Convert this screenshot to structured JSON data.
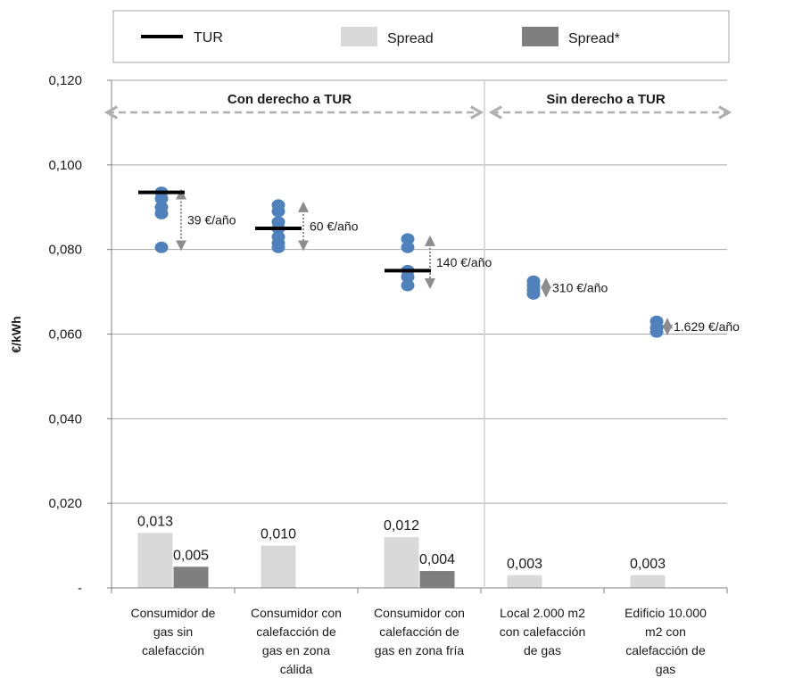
{
  "chart_data": {
    "type": "bar",
    "ylabel": "€/kWh",
    "ylim": [
      0,
      0.12
    ],
    "y_ticks": [
      "0,120",
      "0,100",
      "0,080",
      "0,060",
      "0,040",
      "0,020",
      "-"
    ],
    "grid": true,
    "legend_position": "top",
    "legend": [
      {
        "label": "TUR",
        "marker": "line",
        "color": "#000000"
      },
      {
        "label": "Spread",
        "marker": "box",
        "color": "#d9d9d9"
      },
      {
        "label": "Spread*",
        "marker": "box",
        "color": "#7f7f7f"
      }
    ],
    "categories": [
      [
        "Consumidor de",
        "gas sin",
        "calefacción"
      ],
      [
        "Consumidor con",
        "calefacción de",
        "gas en zona",
        "cálida"
      ],
      [
        "Consumidor con",
        "calefacción de",
        "gas en zona fría"
      ],
      [
        "Local 2.000 m2",
        "con calefacción",
        "de gas"
      ],
      [
        "Edificio 10.000",
        "m2 con",
        "calefacción de",
        "gas"
      ]
    ],
    "regions": [
      {
        "label": "Con derecho a TUR",
        "from": 0,
        "to": 3
      },
      {
        "label": "Sin derecho a TUR",
        "from": 3,
        "to": 5
      }
    ],
    "series": [
      {
        "name": "Spread",
        "color": "#d9d9d9",
        "values": [
          0.013,
          0.01,
          0.012,
          0.003,
          0.003
        ],
        "labels": [
          "0,013",
          "0,010",
          "0,012",
          "0,003",
          "0,003"
        ]
      },
      {
        "name": "Spread*",
        "color": "#7f7f7f",
        "values": [
          0.005,
          null,
          0.004,
          null,
          null
        ],
        "labels": [
          "0,005",
          "",
          "0,004",
          "",
          ""
        ]
      }
    ],
    "tur": [
      0.0935,
      0.085,
      0.075,
      null,
      null
    ],
    "price_points": [
      [
        0.0935,
        0.092,
        0.09,
        0.0885,
        0.0805
      ],
      [
        0.0905,
        0.089,
        0.0865,
        0.085,
        0.083,
        0.0815,
        0.0805
      ],
      [
        0.0825,
        0.0805,
        0.075,
        0.0735,
        0.0715
      ],
      [
        0.0725,
        0.0715,
        0.0705,
        0.0695
      ],
      [
        0.063,
        0.0615,
        0.0605
      ]
    ],
    "ranges": [
      {
        "top": 0.0935,
        "bottom": 0.0805,
        "label": "39 €/año"
      },
      {
        "top": 0.0905,
        "bottom": 0.0805,
        "label": "60  €/año"
      },
      {
        "top": 0.0825,
        "bottom": 0.0715,
        "label": "140  €/año"
      },
      {
        "top": 0.0725,
        "bottom": 0.0695,
        "label": "310  €/año"
      },
      {
        "top": 0.063,
        "bottom": 0.0605,
        "label": "1.629 €/año"
      }
    ]
  }
}
